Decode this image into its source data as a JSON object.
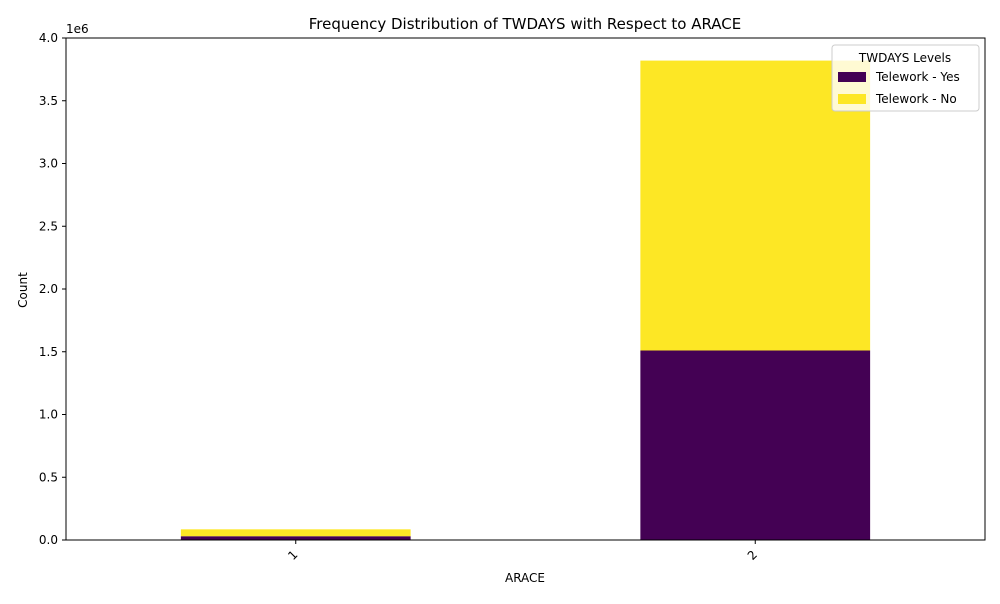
{
  "chart_data": {
    "type": "bar",
    "stacked": true,
    "title": "Frequency Distribution of TWDAYS with Respect to ARACE",
    "xlabel": "ARACE",
    "ylabel": "Count",
    "y_multiplier_label": "1e6",
    "categories": [
      "1",
      "2"
    ],
    "ylim": [
      0,
      4000000
    ],
    "y_ticks": [
      {
        "value": 0,
        "label": "0.0"
      },
      {
        "value": 500000,
        "label": "0.5"
      },
      {
        "value": 1000000,
        "label": "1.0"
      },
      {
        "value": 1500000,
        "label": "1.5"
      },
      {
        "value": 2000000,
        "label": "2.0"
      },
      {
        "value": 2500000,
        "label": "2.5"
      },
      {
        "value": 3000000,
        "label": "3.0"
      },
      {
        "value": 3500000,
        "label": "3.5"
      },
      {
        "value": 4000000,
        "label": "4.0"
      }
    ],
    "series": [
      {
        "name": "Telework - Yes",
        "color": "#440154",
        "values": [
          30000,
          1510000
        ]
      },
      {
        "name": "Telework - No",
        "color": "#fde725",
        "values": [
          55000,
          2310000
        ]
      }
    ],
    "legend": {
      "title": "TWDAYS Levels",
      "placement": "top-right"
    },
    "grid": false
  }
}
